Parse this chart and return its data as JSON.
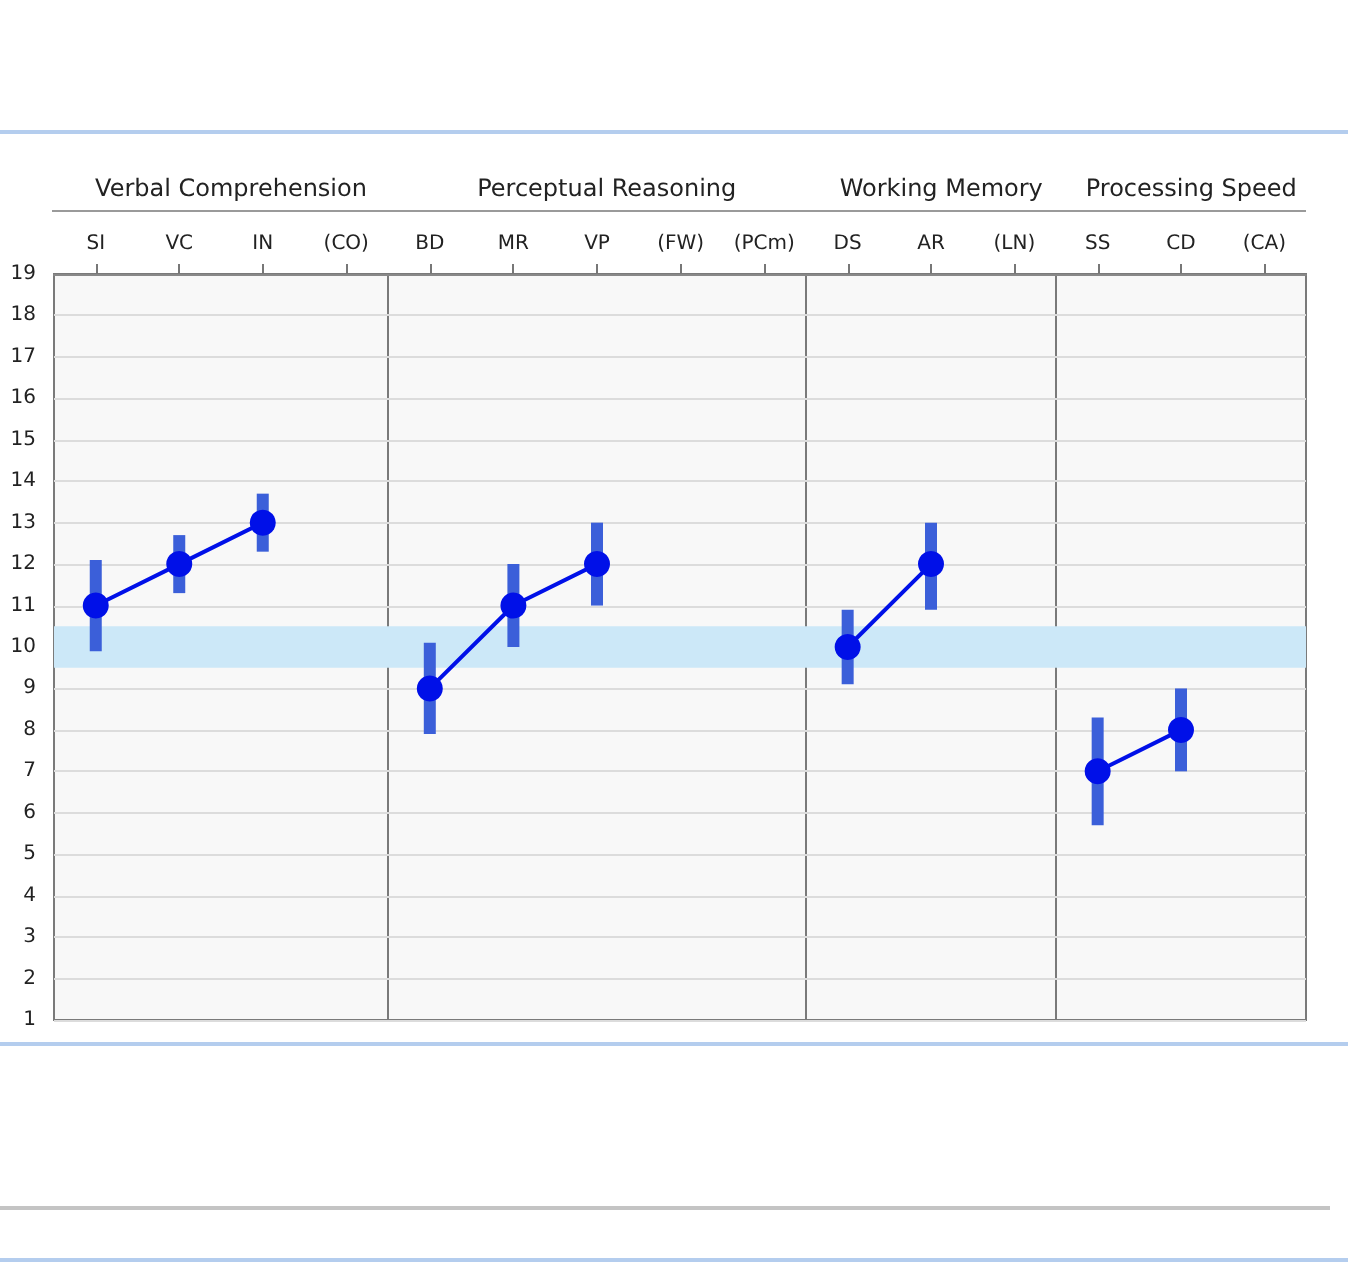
{
  "chart_data": [
    {
      "type": "line",
      "title": "Verbal Comprehension",
      "categories": [
        "SI",
        "VC",
        "IN",
        "(CO)"
      ],
      "values": [
        11,
        12,
        13,
        null
      ],
      "errors": [
        [
          9.9,
          12.1
        ],
        [
          11.3,
          12.7
        ],
        [
          12.3,
          13.7
        ],
        null
      ],
      "color": "#0010e8",
      "ylim": [
        1,
        19
      ],
      "yticks": [
        1,
        2,
        3,
        4,
        5,
        6,
        7,
        8,
        9,
        10,
        11,
        12,
        13,
        14,
        15,
        16,
        17,
        18,
        19
      ],
      "grid": "y",
      "marker": "circle",
      "bands": [
        {
          "axis": "y",
          "from": 9.5,
          "to": 10.5,
          "color": "#cce8f8"
        }
      ]
    },
    {
      "type": "line",
      "title": "Perceptual Reasoning",
      "categories": [
        "BD",
        "MR",
        "VP",
        "(FW)",
        "(PCm)"
      ],
      "values": [
        9,
        11,
        12,
        null,
        null
      ],
      "errors": [
        [
          7.9,
          10.1
        ],
        [
          10.0,
          12.0
        ],
        [
          11.0,
          13.0
        ],
        null,
        null
      ],
      "color": "#0010e8",
      "ylim": [
        1,
        19
      ],
      "yticks": [
        1,
        2,
        3,
        4,
        5,
        6,
        7,
        8,
        9,
        10,
        11,
        12,
        13,
        14,
        15,
        16,
        17,
        18,
        19
      ],
      "grid": "y",
      "marker": "circle",
      "tick_labels": "x",
      "bands": [
        {
          "axis": "y",
          "from": 9.5,
          "to": 10.5,
          "color": "#cce8f8"
        }
      ]
    },
    {
      "type": "line",
      "title": "Working Memory",
      "categories": [
        "DS",
        "AR",
        "(LN)"
      ],
      "values": [
        10,
        12,
        null
      ],
      "errors": [
        [
          9.1,
          10.9
        ],
        [
          10.9,
          13.0
        ],
        null
      ],
      "color": "#0010e8",
      "ylim": [
        1,
        19
      ],
      "yticks": [
        1,
        2,
        3,
        4,
        5,
        6,
        7,
        8,
        9,
        10,
        11,
        12,
        13,
        14,
        15,
        16,
        17,
        18,
        19
      ],
      "grid": "y",
      "marker": "circle",
      "tick_labels": "x",
      "bands": [
        {
          "axis": "y",
          "from": 9.5,
          "to": 10.5,
          "color": "#cce8f8"
        }
      ]
    },
    {
      "type": "line",
      "title": "Processing Speed",
      "categories": [
        "SS",
        "CD",
        "(CA)"
      ],
      "values": [
        7,
        8,
        null
      ],
      "errors": [
        [
          5.7,
          8.3
        ],
        [
          7.0,
          9.0
        ],
        null
      ],
      "color": "#0010e8",
      "ylim": [
        1,
        19
      ],
      "yticks": [
        1,
        2,
        3,
        4,
        5,
        6,
        7,
        8,
        9,
        10,
        11,
        12,
        13,
        14,
        15,
        16,
        17,
        18,
        19
      ],
      "grid": "y",
      "marker": "circle",
      "tick_labels": "x",
      "bands": [
        {
          "axis": "y",
          "from": 9.5,
          "to": 10.5,
          "color": "#cce8f8"
        }
      ]
    }
  ]
}
